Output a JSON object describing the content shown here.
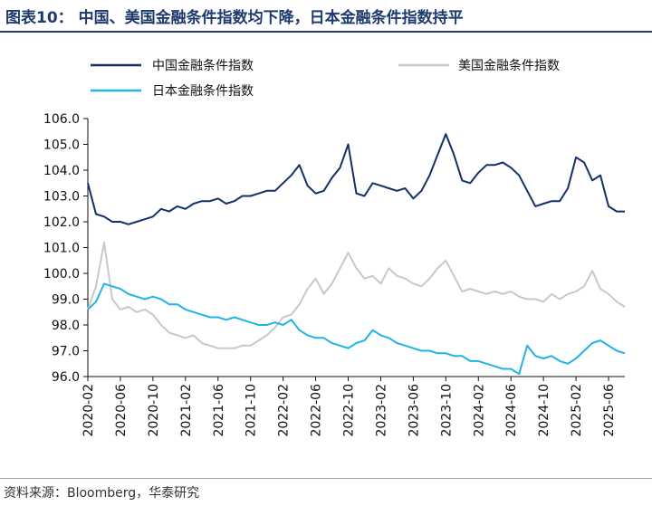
{
  "figure": {
    "title": "图表10：  中国、美国金融条件指数均下降，日本金融条件指数持平",
    "source": "资料来源：Bloomberg，华泰研究"
  },
  "chart_data": {
    "type": "line",
    "x_type": "date",
    "ylim": [
      96.0,
      106.0
    ],
    "y_ticks": [
      "106.0",
      "105.0",
      "104.0",
      "103.0",
      "102.0",
      "101.0",
      "100.0",
      "99.0",
      "98.0",
      "97.0",
      "96.0"
    ],
    "x_ticks": [
      "2020-02",
      "2020-06",
      "2020-10",
      "2021-02",
      "2021-06",
      "2021-10",
      "2022-02",
      "2022-06",
      "2022-10",
      "2023-02",
      "2023-06",
      "2023-10",
      "2024-02",
      "2024-06",
      "2024-10",
      "2025-02",
      "2025-06"
    ],
    "xlim": [
      "2020-02",
      "2025-08"
    ],
    "grid": false,
    "legend": "top",
    "colors": {
      "china": "#13306b",
      "usa": "#c8c8c8",
      "japan": "#21b4e6",
      "axis": "#111111"
    },
    "series": [
      {
        "name": "中国金融条件指数",
        "key": "china",
        "points": [
          [
            "2020-02",
            103.5
          ],
          [
            "2020-03",
            102.3
          ],
          [
            "2020-04",
            102.2
          ],
          [
            "2020-05",
            102.0
          ],
          [
            "2020-06",
            102.0
          ],
          [
            "2020-07",
            101.9
          ],
          [
            "2020-08",
            102.0
          ],
          [
            "2020-09",
            102.1
          ],
          [
            "2020-10",
            102.2
          ],
          [
            "2020-11",
            102.5
          ],
          [
            "2020-12",
            102.4
          ],
          [
            "2021-01",
            102.6
          ],
          [
            "2021-02",
            102.5
          ],
          [
            "2021-03",
            102.7
          ],
          [
            "2021-04",
            102.8
          ],
          [
            "2021-05",
            102.8
          ],
          [
            "2021-06",
            102.9
          ],
          [
            "2021-07",
            102.7
          ],
          [
            "2021-08",
            102.8
          ],
          [
            "2021-09",
            103.0
          ],
          [
            "2021-10",
            103.0
          ],
          [
            "2021-11",
            103.1
          ],
          [
            "2021-12",
            103.2
          ],
          [
            "2022-01",
            103.2
          ],
          [
            "2022-02",
            103.5
          ],
          [
            "2022-03",
            103.8
          ],
          [
            "2022-04",
            104.2
          ],
          [
            "2022-05",
            103.4
          ],
          [
            "2022-06",
            103.1
          ],
          [
            "2022-07",
            103.2
          ],
          [
            "2022-08",
            103.7
          ],
          [
            "2022-09",
            104.1
          ],
          [
            "2022-10",
            105.0
          ],
          [
            "2022-11",
            103.1
          ],
          [
            "2022-12",
            103.0
          ],
          [
            "2023-01",
            103.5
          ],
          [
            "2023-02",
            103.4
          ],
          [
            "2023-03",
            103.3
          ],
          [
            "2023-04",
            103.2
          ],
          [
            "2023-05",
            103.3
          ],
          [
            "2023-06",
            102.9
          ],
          [
            "2023-07",
            103.2
          ],
          [
            "2023-08",
            103.8
          ],
          [
            "2023-09",
            104.6
          ],
          [
            "2023-10",
            105.4
          ],
          [
            "2023-11",
            104.6
          ],
          [
            "2023-12",
            103.6
          ],
          [
            "2024-01",
            103.5
          ],
          [
            "2024-02",
            103.9
          ],
          [
            "2024-03",
            104.2
          ],
          [
            "2024-04",
            104.2
          ],
          [
            "2024-05",
            104.3
          ],
          [
            "2024-06",
            104.1
          ],
          [
            "2024-07",
            103.8
          ],
          [
            "2024-08",
            103.2
          ],
          [
            "2024-09",
            102.6
          ],
          [
            "2024-10",
            102.7
          ],
          [
            "2024-11",
            102.8
          ],
          [
            "2024-12",
            102.8
          ],
          [
            "2025-01",
            103.3
          ],
          [
            "2025-02",
            104.5
          ],
          [
            "2025-03",
            104.3
          ],
          [
            "2025-04",
            103.6
          ],
          [
            "2025-05",
            103.8
          ],
          [
            "2025-06",
            102.6
          ],
          [
            "2025-07",
            102.4
          ],
          [
            "2025-08",
            102.4
          ]
        ]
      },
      {
        "name": "美国金融条件指数",
        "key": "usa",
        "points": [
          [
            "2020-02",
            98.6
          ],
          [
            "2020-03",
            99.5
          ],
          [
            "2020-04",
            101.2
          ],
          [
            "2020-05",
            99.0
          ],
          [
            "2020-06",
            98.6
          ],
          [
            "2020-07",
            98.7
          ],
          [
            "2020-08",
            98.5
          ],
          [
            "2020-09",
            98.6
          ],
          [
            "2020-10",
            98.4
          ],
          [
            "2020-11",
            98.0
          ],
          [
            "2020-12",
            97.7
          ],
          [
            "2021-01",
            97.6
          ],
          [
            "2021-02",
            97.5
          ],
          [
            "2021-03",
            97.6
          ],
          [
            "2021-04",
            97.3
          ],
          [
            "2021-05",
            97.2
          ],
          [
            "2021-06",
            97.1
          ],
          [
            "2021-07",
            97.1
          ],
          [
            "2021-08",
            97.1
          ],
          [
            "2021-09",
            97.2
          ],
          [
            "2021-10",
            97.2
          ],
          [
            "2021-11",
            97.4
          ],
          [
            "2021-12",
            97.6
          ],
          [
            "2022-01",
            97.9
          ],
          [
            "2022-02",
            98.3
          ],
          [
            "2022-03",
            98.4
          ],
          [
            "2022-04",
            98.8
          ],
          [
            "2022-05",
            99.4
          ],
          [
            "2022-06",
            99.8
          ],
          [
            "2022-07",
            99.2
          ],
          [
            "2022-08",
            99.6
          ],
          [
            "2022-09",
            100.2
          ],
          [
            "2022-10",
            100.8
          ],
          [
            "2022-11",
            100.2
          ],
          [
            "2022-12",
            99.8
          ],
          [
            "2023-01",
            99.9
          ],
          [
            "2023-02",
            99.6
          ],
          [
            "2023-03",
            100.2
          ],
          [
            "2023-04",
            99.9
          ],
          [
            "2023-05",
            99.8
          ],
          [
            "2023-06",
            99.6
          ],
          [
            "2023-07",
            99.5
          ],
          [
            "2023-08",
            99.8
          ],
          [
            "2023-09",
            100.2
          ],
          [
            "2023-10",
            100.5
          ],
          [
            "2023-11",
            99.9
          ],
          [
            "2023-12",
            99.3
          ],
          [
            "2024-01",
            99.4
          ],
          [
            "2024-02",
            99.3
          ],
          [
            "2024-03",
            99.2
          ],
          [
            "2024-04",
            99.3
          ],
          [
            "2024-05",
            99.2
          ],
          [
            "2024-06",
            99.3
          ],
          [
            "2024-07",
            99.1
          ],
          [
            "2024-08",
            99.0
          ],
          [
            "2024-09",
            99.0
          ],
          [
            "2024-10",
            98.9
          ],
          [
            "2024-11",
            99.2
          ],
          [
            "2024-12",
            99.0
          ],
          [
            "2025-01",
            99.2
          ],
          [
            "2025-02",
            99.3
          ],
          [
            "2025-03",
            99.5
          ],
          [
            "2025-04",
            100.1
          ],
          [
            "2025-05",
            99.4
          ],
          [
            "2025-06",
            99.2
          ],
          [
            "2025-07",
            98.9
          ],
          [
            "2025-08",
            98.7
          ]
        ]
      },
      {
        "name": "日本金融条件指数",
        "key": "japan",
        "points": [
          [
            "2020-02",
            98.6
          ],
          [
            "2020-03",
            98.9
          ],
          [
            "2020-04",
            99.6
          ],
          [
            "2020-05",
            99.5
          ],
          [
            "2020-06",
            99.4
          ],
          [
            "2020-07",
            99.2
          ],
          [
            "2020-08",
            99.1
          ],
          [
            "2020-09",
            99.0
          ],
          [
            "2020-10",
            99.1
          ],
          [
            "2020-11",
            99.0
          ],
          [
            "2020-12",
            98.8
          ],
          [
            "2021-01",
            98.8
          ],
          [
            "2021-02",
            98.6
          ],
          [
            "2021-03",
            98.5
          ],
          [
            "2021-04",
            98.4
          ],
          [
            "2021-05",
            98.3
          ],
          [
            "2021-06",
            98.3
          ],
          [
            "2021-07",
            98.2
          ],
          [
            "2021-08",
            98.3
          ],
          [
            "2021-09",
            98.2
          ],
          [
            "2021-10",
            98.1
          ],
          [
            "2021-11",
            98.0
          ],
          [
            "2021-12",
            98.0
          ],
          [
            "2022-01",
            98.1
          ],
          [
            "2022-02",
            98.0
          ],
          [
            "2022-03",
            98.2
          ],
          [
            "2022-04",
            97.8
          ],
          [
            "2022-05",
            97.6
          ],
          [
            "2022-06",
            97.5
          ],
          [
            "2022-07",
            97.5
          ],
          [
            "2022-08",
            97.3
          ],
          [
            "2022-09",
            97.2
          ],
          [
            "2022-10",
            97.1
          ],
          [
            "2022-11",
            97.3
          ],
          [
            "2022-12",
            97.4
          ],
          [
            "2023-01",
            97.8
          ],
          [
            "2023-02",
            97.6
          ],
          [
            "2023-03",
            97.5
          ],
          [
            "2023-04",
            97.3
          ],
          [
            "2023-05",
            97.2
          ],
          [
            "2023-06",
            97.1
          ],
          [
            "2023-07",
            97.0
          ],
          [
            "2023-08",
            97.0
          ],
          [
            "2023-09",
            96.9
          ],
          [
            "2023-10",
            96.9
          ],
          [
            "2023-11",
            96.8
          ],
          [
            "2023-12",
            96.8
          ],
          [
            "2024-01",
            96.6
          ],
          [
            "2024-02",
            96.6
          ],
          [
            "2024-03",
            96.5
          ],
          [
            "2024-04",
            96.4
          ],
          [
            "2024-05",
            96.3
          ],
          [
            "2024-06",
            96.3
          ],
          [
            "2024-07",
            96.1
          ],
          [
            "2024-08",
            97.2
          ],
          [
            "2024-09",
            96.8
          ],
          [
            "2024-10",
            96.7
          ],
          [
            "2024-11",
            96.8
          ],
          [
            "2024-12",
            96.6
          ],
          [
            "2025-01",
            96.5
          ],
          [
            "2025-02",
            96.7
          ],
          [
            "2025-03",
            97.0
          ],
          [
            "2025-04",
            97.3
          ],
          [
            "2025-05",
            97.4
          ],
          [
            "2025-06",
            97.2
          ],
          [
            "2025-07",
            97.0
          ],
          [
            "2025-08",
            96.9
          ]
        ]
      }
    ]
  }
}
